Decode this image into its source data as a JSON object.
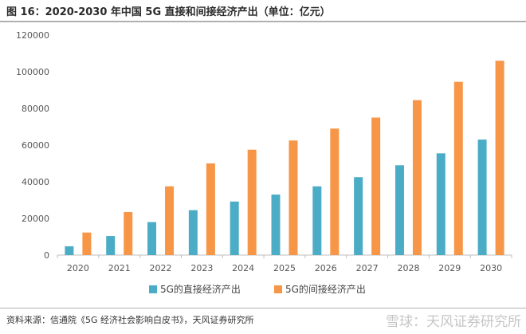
{
  "header": {
    "title": "图 16：2020-2030 年中国 5G 直接和间接经济产出（单位：亿元）"
  },
  "footer": {
    "source": "资料来源：信通院《5G 经济社会影响白皮书》，天风证券研究所",
    "watermark": "雪球：天风证券研究所"
  },
  "chart_data": {
    "type": "bar",
    "categories": [
      "2020",
      "2021",
      "2022",
      "2023",
      "2024",
      "2025",
      "2026",
      "2027",
      "2028",
      "2029",
      "2030"
    ],
    "series": [
      {
        "name": "5G的直接经济产出",
        "color": "#4bacc6",
        "values": [
          4800,
          10400,
          18000,
          24500,
          29200,
          33000,
          37500,
          42500,
          49000,
          55500,
          63000
        ]
      },
      {
        "name": "5G的间接经济产出",
        "color": "#f79646",
        "values": [
          12300,
          23500,
          37500,
          50000,
          57500,
          62500,
          69000,
          75000,
          84500,
          94500,
          106000
        ]
      }
    ],
    "ylim": [
      0,
      120000
    ],
    "yticks": [
      "0",
      "20000",
      "40000",
      "60000",
      "80000",
      "100000",
      "120000"
    ],
    "grid": false,
    "legend_position": "bottom"
  }
}
